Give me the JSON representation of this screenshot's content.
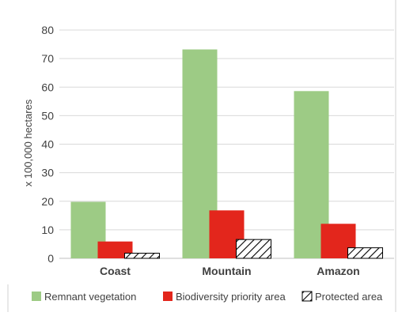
{
  "chart_data": {
    "type": "bar",
    "categories": [
      "Coast",
      "Mountain",
      "Amazon"
    ],
    "series": [
      {
        "name": "Remnant vegetation",
        "values": [
          19.8,
          73.2,
          58.6
        ],
        "color": "#9dcb85",
        "pattern": "solid"
      },
      {
        "name": "Biodiversity priority area",
        "values": [
          5.9,
          16.8,
          12.1
        ],
        "color": "#e3261c",
        "pattern": "solid"
      },
      {
        "name": "Protected area",
        "values": [
          1.8,
          6.6,
          3.7
        ],
        "color": "#ffffff",
        "pattern": "hatch"
      }
    ],
    "ylabel": "x 100,000 hectares",
    "ylim": [
      0,
      80
    ],
    "yticks": [
      0,
      10,
      20,
      30,
      40,
      50,
      60,
      70,
      80
    ],
    "grid": true,
    "legend": "bottom"
  }
}
